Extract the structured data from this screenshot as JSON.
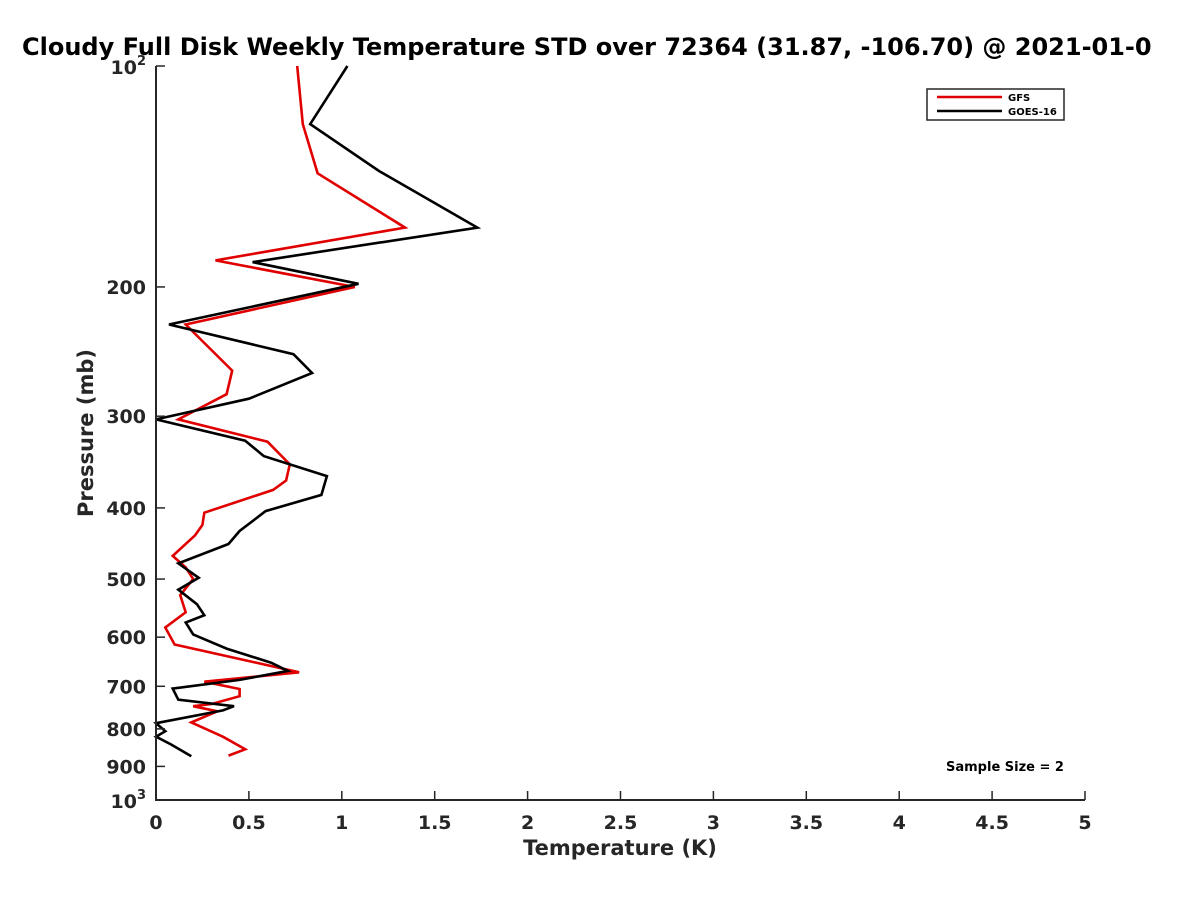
{
  "chart_data": {
    "type": "line",
    "title": "Cloudy Full Disk Weekly Temperature STD over 72364 (31.87, -106.70) @ 2021-01-0",
    "xlabel": "Temperature (K)",
    "ylabel": "Pressure (mb)",
    "xlim": [
      0,
      5
    ],
    "ylim": [
      100,
      1000
    ],
    "y_scale": "log",
    "y_reversed": true,
    "x_ticks": [
      {
        "value": 0,
        "label": "0"
      },
      {
        "value": 0.5,
        "label": "0.5"
      },
      {
        "value": 1,
        "label": "1"
      },
      {
        "value": 1.5,
        "label": "1.5"
      },
      {
        "value": 2,
        "label": "2"
      },
      {
        "value": 2.5,
        "label": "2.5"
      },
      {
        "value": 3,
        "label": "3"
      },
      {
        "value": 3.5,
        "label": "3.5"
      },
      {
        "value": 4,
        "label": "4"
      },
      {
        "value": 4.5,
        "label": "4.5"
      },
      {
        "value": 5,
        "label": "5"
      }
    ],
    "y_ticks": [
      {
        "value": 100,
        "base": "10",
        "exp": "2"
      },
      {
        "value": 200,
        "label": "200"
      },
      {
        "value": 300,
        "label": "300"
      },
      {
        "value": 400,
        "label": "400"
      },
      {
        "value": 500,
        "label": "500"
      },
      {
        "value": 600,
        "label": "600"
      },
      {
        "value": 700,
        "label": "700"
      },
      {
        "value": 800,
        "label": "800"
      },
      {
        "value": 900,
        "label": "900"
      },
      {
        "value": 1000,
        "base": "10",
        "exp": "3"
      }
    ],
    "grid": false,
    "legend_position": "top-right",
    "series": [
      {
        "name": "GFS",
        "color": "#e00000",
        "points": [
          [
            0.76,
            100
          ],
          [
            0.79,
            120
          ],
          [
            0.87,
            140
          ],
          [
            1.34,
            166
          ],
          [
            0.32,
            184
          ],
          [
            1.07,
            200
          ],
          [
            0.16,
            225
          ],
          [
            0.41,
            260
          ],
          [
            0.38,
            280
          ],
          [
            0.12,
            303
          ],
          [
            0.6,
            325
          ],
          [
            0.72,
            349
          ],
          [
            0.7,
            367
          ],
          [
            0.63,
            378
          ],
          [
            0.26,
            406
          ],
          [
            0.25,
            422
          ],
          [
            0.21,
            436
          ],
          [
            0.09,
            465
          ],
          [
            0.16,
            482
          ],
          [
            0.2,
            500
          ],
          [
            0.13,
            526
          ],
          [
            0.16,
            555
          ],
          [
            0.05,
            582
          ],
          [
            0.1,
            614
          ],
          [
            0.77,
            670
          ],
          [
            0.26,
            690
          ],
          [
            0.45,
            706
          ],
          [
            0.45,
            722
          ],
          [
            0.3,
            740
          ],
          [
            0.2,
            745
          ],
          [
            0.33,
            757
          ],
          [
            0.19,
            784
          ],
          [
            0.36,
            820
          ],
          [
            0.48,
            853
          ],
          [
            0.39,
            870
          ]
        ]
      },
      {
        "name": "GOES-16",
        "color": "#000000",
        "points": [
          [
            1.03,
            100
          ],
          [
            0.83,
            120
          ],
          [
            1.2,
            139
          ],
          [
            1.73,
            166
          ],
          [
            0.52,
            185
          ],
          [
            1.09,
            198
          ],
          [
            0.07,
            225
          ],
          [
            0.74,
            247
          ],
          [
            0.84,
            262
          ],
          [
            0.5,
            284
          ],
          [
            0.0,
            303
          ],
          [
            0.48,
            324
          ],
          [
            0.58,
            340
          ],
          [
            0.92,
            362
          ],
          [
            0.89,
            384
          ],
          [
            0.59,
            404
          ],
          [
            0.45,
            430
          ],
          [
            0.39,
            448
          ],
          [
            0.12,
            476
          ],
          [
            0.23,
            498
          ],
          [
            0.12,
            517
          ],
          [
            0.22,
            541
          ],
          [
            0.26,
            560
          ],
          [
            0.16,
            573
          ],
          [
            0.2,
            595
          ],
          [
            0.38,
            622
          ],
          [
            0.62,
            650
          ],
          [
            0.71,
            667
          ],
          [
            0.45,
            686
          ],
          [
            0.09,
            705
          ],
          [
            0.12,
            730
          ],
          [
            0.42,
            745
          ],
          [
            0.36,
            755
          ],
          [
            0.0,
            786
          ],
          [
            0.05,
            806
          ],
          [
            0.0,
            820
          ],
          [
            0.08,
            840
          ],
          [
            0.19,
            872
          ]
        ]
      }
    ],
    "annotation": "Sample Size = 2"
  }
}
